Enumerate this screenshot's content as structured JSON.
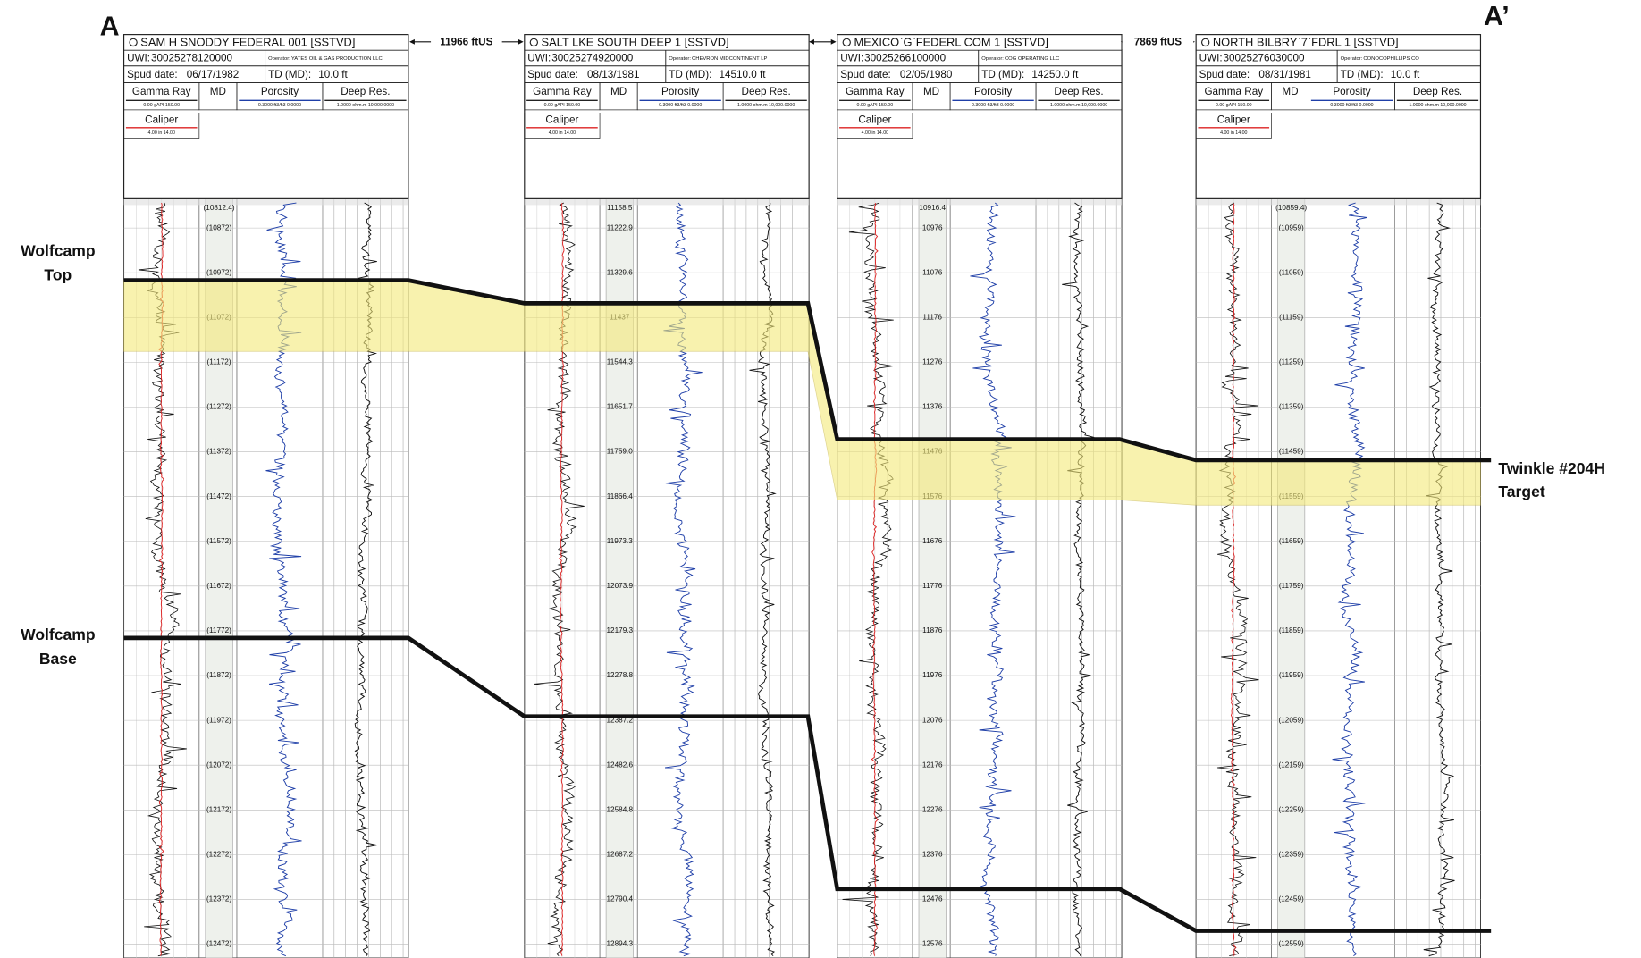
{
  "section": {
    "left_label": "A",
    "right_label": "A’"
  },
  "markers": {
    "top": {
      "line1": "Wolfcamp",
      "line2": "Top"
    },
    "base": {
      "line1": "Wolfcamp",
      "line2": "Base"
    },
    "target": {
      "line1": "Twinkle #204H",
      "line2": "Target"
    }
  },
  "spacings": [
    "11966 ftUS",
    "7869 ftUS"
  ],
  "header_labels": {
    "uwi": "UWI:",
    "operator": "Operator:",
    "spud": "Spud date:",
    "td": "TD (MD):"
  },
  "tracks": {
    "gamma": "Gamma Ray",
    "md": "MD",
    "porosity": "Porosity",
    "res": "Deep Res.",
    "caliper": "Caliper",
    "gamma_scale": "0.00   gAPI   150.00",
    "porosity_scale": "0.3000 ft3/ft3 0.0000",
    "res_scale": "1.0000 ohm.m 10,000.0000",
    "caliper_scale": "4.00    in    14.00"
  },
  "wells": [
    {
      "title": "SAM H SNODDY FEDERAL 001 [SSTVD]",
      "uwi": "30025278120000",
      "operator": "YATES OIL & GAS PRODUCTION LLC",
      "spud": "06/17/1982",
      "td": "10.0 ft",
      "depths": [
        "(10812.4)",
        "(10872)",
        "(10972)",
        "(11072)",
        "(11172)",
        "(11272)",
        "(11372)",
        "(11472)",
        "(11572)",
        "(11672)",
        "(11772)",
        "(11872)",
        "(11972)",
        "(12072)",
        "(12172)",
        "(12272)",
        "(12372)",
        "(12472)"
      ]
    },
    {
      "title": "SALT LKE SOUTH DEEP 1 [SSTVD]",
      "uwi": "30025274920000",
      "operator": "CHEVRON MIDCONTINENT LP",
      "spud": "08/13/1981",
      "td": "14510.0 ft",
      "depths": [
        "11158.5",
        "11222.9",
        "11329.6",
        "11437",
        "11544.3",
        "11651.7",
        "11759.0",
        "11866.4",
        "11973.3",
        "12073.9",
        "12179.3",
        "12278.8",
        "12387.2",
        "12482.6",
        "12584.8",
        "12687.2",
        "12790.4",
        "12894.3"
      ]
    },
    {
      "title": "MEXICO`G`FEDERL COM 1 [SSTVD]",
      "uwi": "30025266100000",
      "operator": "COG OPERATING LLC",
      "spud": "02/05/1980",
      "td": "14250.0 ft",
      "depths": [
        "10916.4",
        "10976",
        "11076",
        "11176",
        "11276",
        "11376",
        "11476",
        "11576",
        "11676",
        "11776",
        "11876",
        "11976",
        "12076",
        "12176",
        "12276",
        "12376",
        "12476",
        "12576"
      ]
    },
    {
      "title": "NORTH BILBRY`7`FDRL 1 [SSTVD]",
      "uwi": "30025276030000",
      "operator": "CONOCOPHILLIPS CO",
      "spud": "08/31/1981",
      "td": "10.0 ft",
      "depths": [
        "(10859.4)",
        "(10959)",
        "(11059)",
        "(11159)",
        "(11259)",
        "(11359)",
        "(11459)",
        "(11559)",
        "(11659)",
        "(11759)",
        "(11859)",
        "(11959)",
        "(12059)",
        "(12159)",
        "(12259)",
        "(12359)",
        "(12459)",
        "(12559)"
      ]
    }
  ]
}
